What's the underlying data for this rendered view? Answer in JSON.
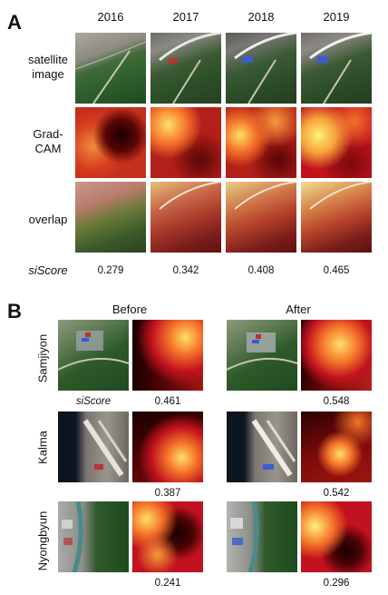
{
  "panel_a": {
    "letter": "A",
    "years": [
      "2016",
      "2017",
      "2018",
      "2019"
    ],
    "row_labels": {
      "satellite_line1": "satellite",
      "satellite_line2": "image",
      "gradcam_line1": "Grad-",
      "gradcam_line2": "CAM",
      "overlap": "overlap",
      "siscore": "siScore"
    },
    "scores": [
      "0.279",
      "0.342",
      "0.408",
      "0.465"
    ]
  },
  "panel_b": {
    "letter": "B",
    "before_label": "Before",
    "after_label": "After",
    "siscore_label": "siScore",
    "sites": [
      {
        "name": "Samjiyon",
        "before_score": "0.461",
        "after_score": "0.548"
      },
      {
        "name": "Kalma",
        "before_score": "0.387",
        "after_score": "0.542"
      },
      {
        "name": "Nyongbyun",
        "before_score": "0.241",
        "after_score": "0.296"
      }
    ]
  },
  "colors": {
    "heat_dark": "#1a0000",
    "heat_red": "#c1121f",
    "heat_orange": "#f4732a",
    "heat_yellow": "#ffe066",
    "vegetation": "#2f5a2a"
  }
}
